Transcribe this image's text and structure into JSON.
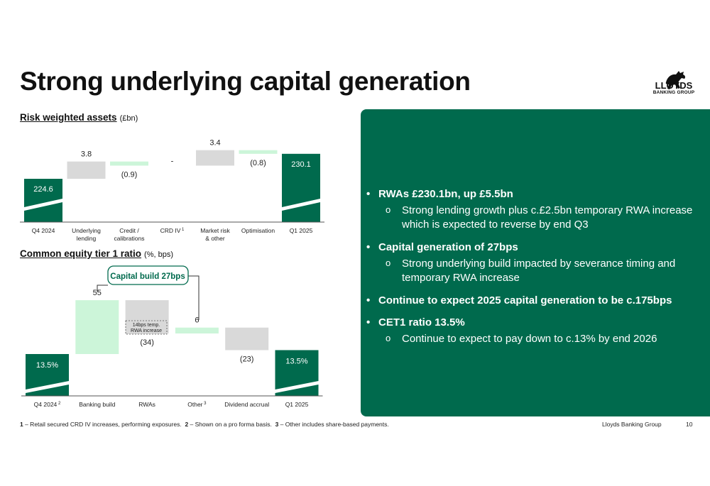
{
  "title": "Strong underlying capital generation",
  "logo": {
    "line1": "LLOYDS",
    "line2": "BANKING GROUP"
  },
  "chart_data": [
    {
      "type": "bar",
      "variant": "waterfall",
      "title": "Risk weighted assets",
      "unit": "(£bn)",
      "categories": [
        "Q4 2024",
        "Underlying lending",
        "Credit / calibrations",
        "CRD IV",
        "Market risk & other",
        "Optimisation",
        "Q1 2025"
      ],
      "category_superscripts": [
        "",
        "",
        "",
        "1",
        "",
        "",
        ""
      ],
      "values": [
        224.6,
        3.8,
        -0.9,
        0,
        3.4,
        -0.8,
        230.1
      ],
      "labels": [
        "224.6",
        "3.8",
        "(0.9)",
        "-",
        "3.4",
        "(0.8)",
        "230.1"
      ],
      "kinds": [
        "total",
        "delta",
        "delta",
        "delta",
        "delta",
        "delta",
        "total"
      ],
      "colors": {
        "total": "#006a4d",
        "increase": "#d9d9d9",
        "decrease": "#ccf5d9"
      }
    },
    {
      "type": "bar",
      "variant": "waterfall",
      "title": "Common equity tier 1 ratio",
      "unit": "(%, bps)",
      "categories": [
        "Q4 2024",
        "Banking build",
        "RWAs",
        "Other",
        "Dividend accrual",
        "Q1 2025"
      ],
      "category_superscripts": [
        "2",
        "",
        "",
        "3",
        "",
        ""
      ],
      "values": [
        13.5,
        55,
        -34,
        6,
        -23,
        13.5
      ],
      "labels": [
        "13.5%",
        "55",
        "(34)",
        "6",
        "(23)",
        "13.5%"
      ],
      "kinds": [
        "total",
        "delta",
        "delta",
        "delta",
        "delta",
        "total"
      ],
      "colors": {
        "total": "#006a4d",
        "increase": "#ccf5d9",
        "decrease": "#d9d9d9"
      },
      "annotations": [
        {
          "text": "Capital build 27bps",
          "spans": [
            "Banking build",
            "Other"
          ]
        },
        {
          "text_line1": "14bps temp.",
          "text_line2": "RWA increase",
          "category": "RWAs"
        }
      ]
    }
  ],
  "panel": {
    "bullets": [
      {
        "text": "RWAs £230.1bn, up £5.5bn",
        "sub": [
          "Strong lending growth plus c.£2.5bn temporary RWA increase which is expected to reverse by end Q3"
        ]
      },
      {
        "text": "Capital generation of 27bps",
        "sub": [
          "Strong underlying build impacted by severance timing and temporary RWA increase"
        ]
      },
      {
        "text": "Continue to expect 2025 capital generation to be c.175bps",
        "sub": []
      },
      {
        "text": "CET1 ratio 13.5%",
        "sub": [
          "Continue to expect to pay down to c.13% by end 2026"
        ]
      }
    ]
  },
  "footnotes": [
    {
      "num": "1",
      "text": " – Retail secured CRD IV increases, performing exposures."
    },
    {
      "num": "2",
      "text": " – Shown on a pro forma basis."
    },
    {
      "num": "3",
      "text": " – Other includes share-based payments."
    }
  ],
  "footer": {
    "company": "Lloyds Banking Group",
    "page": "10"
  }
}
